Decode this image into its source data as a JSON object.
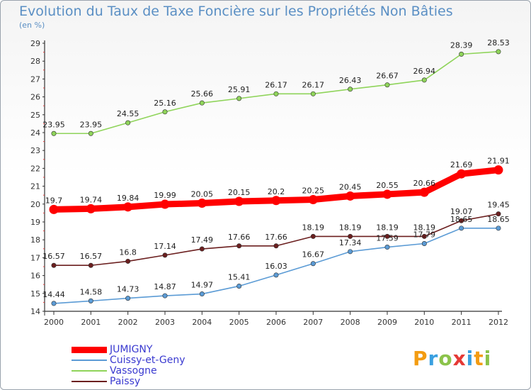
{
  "header": {
    "title": "Evolution du Taux de Taxe Foncière sur les Propriétés Non Bâties",
    "unit": "(en %)"
  },
  "logo": {
    "text": "Proxiti"
  },
  "chart_data": {
    "type": "line",
    "title": "Evolution du Taux de Taxe Foncière sur les Propriétés Non Bâties",
    "ylabel": "(en %)",
    "xlabel": "",
    "x": [
      2000,
      2001,
      2002,
      2003,
      2004,
      2005,
      2006,
      2007,
      2008,
      2009,
      2010,
      2011,
      2012
    ],
    "ylim": [
      14,
      29
    ],
    "yticks": [
      14,
      15,
      16,
      17,
      18,
      19,
      20,
      21,
      22,
      23,
      24,
      25,
      26,
      27,
      28,
      29
    ],
    "grid": false,
    "legend_position": "bottom-left",
    "series": [
      {
        "name": "JUMIGNY",
        "color": "#ff0000",
        "emphasis": true,
        "values": [
          19.7,
          19.74,
          19.84,
          19.99,
          20.05,
          20.15,
          20.2,
          20.25,
          20.45,
          20.55,
          20.66,
          21.69,
          21.91
        ]
      },
      {
        "name": "Cuissy-et-Geny",
        "color": "#5b9bd5",
        "values": [
          14.44,
          14.58,
          14.73,
          14.87,
          14.97,
          15.41,
          16.03,
          16.67,
          17.34,
          17.59,
          17.79,
          18.65,
          18.65
        ]
      },
      {
        "name": "Vassogne",
        "color": "#8fd45a",
        "values": [
          23.95,
          23.95,
          24.55,
          25.16,
          25.66,
          25.91,
          26.17,
          26.17,
          26.43,
          26.67,
          26.94,
          28.39,
          28.53
        ]
      },
      {
        "name": "Paissy",
        "color": "#6b1f1f",
        "values": [
          16.57,
          16.57,
          16.8,
          17.14,
          17.49,
          17.66,
          17.66,
          18.19,
          18.19,
          18.19,
          18.19,
          19.07,
          19.45
        ]
      }
    ]
  }
}
